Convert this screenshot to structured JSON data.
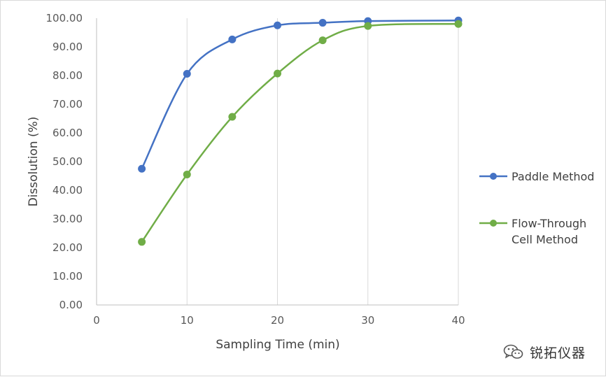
{
  "chart_data": {
    "type": "line",
    "title": "",
    "xlabel": "Sampling Time (min)",
    "ylabel": "Dissolution (%)",
    "xlim": [
      0,
      40
    ],
    "ylim": [
      0,
      100
    ],
    "x_ticks": [
      0,
      10,
      20,
      30,
      40
    ],
    "y_ticks": [
      0,
      10,
      20,
      30,
      40,
      50,
      60,
      70,
      80,
      90,
      100
    ],
    "y_tick_labels": [
      "0.00",
      "10.00",
      "20.00",
      "30.00",
      "40.00",
      "50.00",
      "60.00",
      "70.00",
      "80.00",
      "90.00",
      "100.00"
    ],
    "grid": "vertical",
    "smooth": true,
    "legend_position": "right",
    "x": [
      5,
      10,
      15,
      20,
      25,
      30,
      40
    ],
    "series": [
      {
        "name": "Paddle Method",
        "color": "#4472c4",
        "values": [
          47.5,
          80.6,
          92.6,
          97.5,
          98.4,
          99.0,
          99.2
        ]
      },
      {
        "name": "Flow-Through Cell Method",
        "name_lines": [
          "Flow-Through",
          "Cell Method"
        ],
        "color": "#70ad47",
        "values": [
          22.0,
          45.5,
          65.6,
          80.7,
          92.3,
          97.3,
          98.0
        ]
      }
    ]
  },
  "watermark": {
    "text": "锐拓仪器",
    "icon": "wechat-icon"
  }
}
